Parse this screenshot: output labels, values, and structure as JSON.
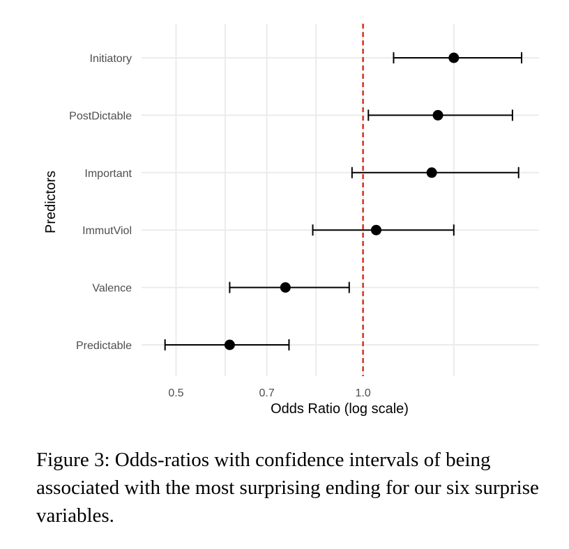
{
  "chart_data": {
    "type": "scatter",
    "subtype": "forest-plot",
    "xlabel": "Odds Ratio (log scale)",
    "ylabel": "Predictors",
    "x_scale": "log",
    "xlim": [
      0.44,
      1.92
    ],
    "x_ticks": [
      0.5,
      0.7,
      1.0
    ],
    "x_tick_labels": [
      "0.5",
      "0.7",
      "1.0"
    ],
    "x_minor_gridlines": [
      0.6,
      0.84,
      1.4
    ],
    "reference_line": {
      "x": 1.0,
      "style": "dashed",
      "color": "#d7301f"
    },
    "grid": true,
    "predictors": [
      {
        "name": "Initiatory",
        "estimate": 1.4,
        "lower": 1.12,
        "upper": 1.8
      },
      {
        "name": "PostDictable",
        "estimate": 1.32,
        "lower": 1.02,
        "upper": 1.74
      },
      {
        "name": "Important",
        "estimate": 1.29,
        "lower": 0.96,
        "upper": 1.78
      },
      {
        "name": "ImmutViol",
        "estimate": 1.05,
        "lower": 0.83,
        "upper": 1.4
      },
      {
        "name": "Valence",
        "estimate": 0.75,
        "lower": 0.61,
        "upper": 0.95
      },
      {
        "name": "Predictable",
        "estimate": 0.61,
        "lower": 0.48,
        "upper": 0.76
      }
    ],
    "colors": {
      "point": "#000000",
      "grid": "#ebebeb",
      "reference": "#d7301f"
    }
  },
  "caption": "Figure 3: Odds-ratios with confidence intervals of being associated with the most surprising ending for our six surprise variables."
}
